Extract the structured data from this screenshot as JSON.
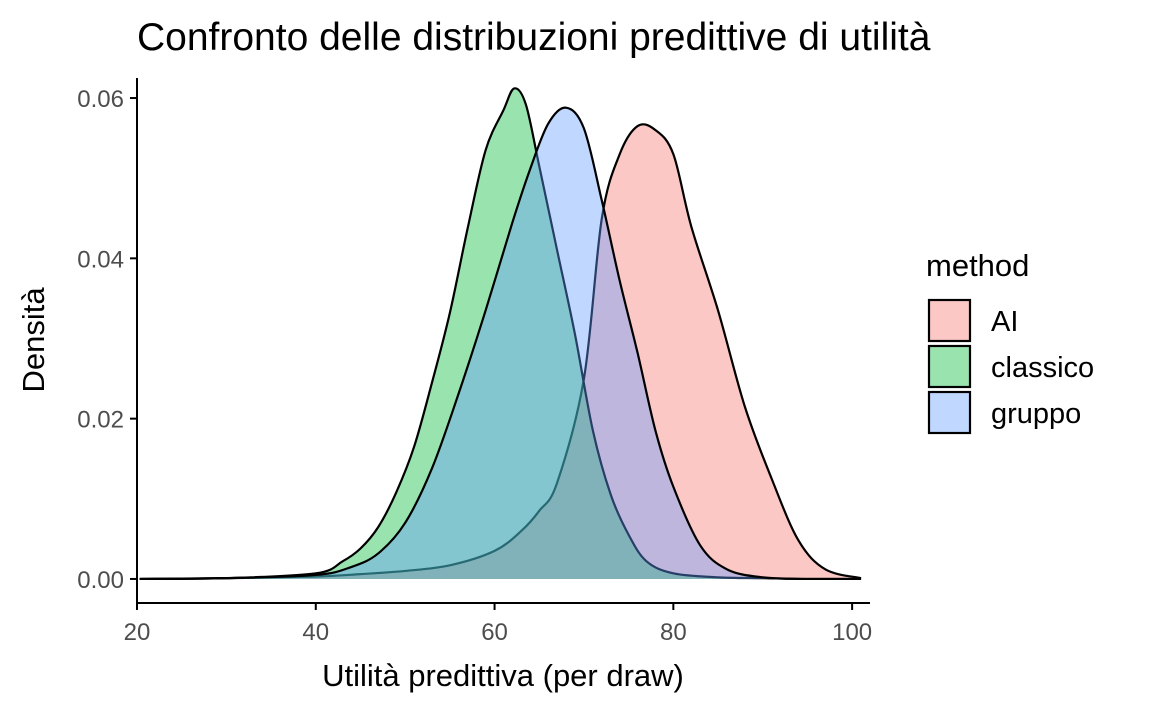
{
  "chart_data": {
    "type": "area",
    "title": "Confronto delle distribuzioni predittive di utilità",
    "xlabel": "Utilità predittiva (per draw)",
    "ylabel": "Densità",
    "xlim": [
      20,
      102
    ],
    "ylim": [
      -0.003,
      0.0625
    ],
    "x_ticks": [
      20,
      40,
      60,
      80,
      100
    ],
    "x_tick_labels": [
      "20",
      "40",
      "60",
      "80",
      "100"
    ],
    "y_ticks": [
      0,
      0.02,
      0.04,
      0.06
    ],
    "y_tick_labels": [
      "0.00",
      "0.02",
      "0.04",
      "0.06"
    ],
    "grid": false,
    "legend": {
      "title": "method",
      "position": "right"
    },
    "series": [
      {
        "name": "AI",
        "color": "#F8766D",
        "x": [
          20.3,
          30,
          40,
          45,
          50,
          55,
          60,
          63,
          65,
          67,
          70,
          72,
          74,
          76,
          78,
          80,
          82,
          85,
          88,
          91,
          94,
          97,
          101
        ],
        "y": [
          0,
          0.0001,
          0.0003,
          0.0006,
          0.001,
          0.0017,
          0.0035,
          0.006,
          0.0085,
          0.012,
          0.025,
          0.045,
          0.053,
          0.0565,
          0.056,
          0.053,
          0.044,
          0.0335,
          0.0215,
          0.0125,
          0.0048,
          0.0012,
          0.0001
        ]
      },
      {
        "name": "classico",
        "color": "#00BA38",
        "x": [
          20.3,
          30,
          40,
          43,
          45,
          47,
          49,
          51,
          53,
          55,
          57,
          59,
          61,
          62.2,
          63.5,
          65,
          67,
          69,
          71,
          73,
          75,
          77,
          80,
          85,
          90,
          95,
          101
        ],
        "y": [
          0,
          0.0001,
          0.0007,
          0.0022,
          0.0038,
          0.0065,
          0.0108,
          0.0165,
          0.0245,
          0.0332,
          0.0438,
          0.0535,
          0.0585,
          0.0612,
          0.0592,
          0.0515,
          0.041,
          0.0305,
          0.0185,
          0.0105,
          0.0055,
          0.0022,
          0.0007,
          0.0002,
          0.0001,
          0,
          0
        ]
      },
      {
        "name": "gruppo",
        "color": "#619CFF",
        "x": [
          20.3,
          30,
          40,
          44,
          47,
          50,
          53,
          56,
          59,
          62,
          64,
          66,
          68,
          70,
          72,
          74,
          76,
          78,
          80,
          83,
          86,
          90,
          95,
          101
        ],
        "y": [
          0,
          0.0001,
          0.0005,
          0.0015,
          0.0032,
          0.007,
          0.0138,
          0.0232,
          0.0335,
          0.0445,
          0.0512,
          0.0568,
          0.0588,
          0.0562,
          0.0472,
          0.0372,
          0.0282,
          0.0185,
          0.0115,
          0.0042,
          0.0012,
          0.0002,
          0,
          0
        ]
      }
    ]
  }
}
